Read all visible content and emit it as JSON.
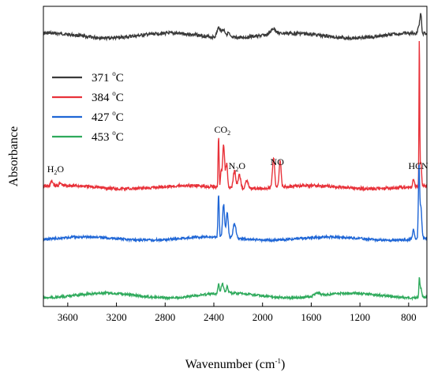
{
  "chart_data": {
    "type": "line",
    "xlabel": "Wavenumber (cm",
    "xlabel_sup": "-1",
    "xlabel_end": ")",
    "ylabel": "Absorbance",
    "xlim": [
      3800,
      650
    ],
    "x_reversed": true,
    "y_ticks_shown": false,
    "x_ticks": [
      "3600",
      "3200",
      "2800",
      "2400",
      "2000",
      "1600",
      "1200",
      "800"
    ],
    "legend_position": "top-left",
    "series": [
      {
        "name": "371 ",
        "name_unit": "C",
        "name_sup": "o",
        "color": "#3a3a3a",
        "offset": 3.0,
        "profile": "top"
      },
      {
        "name": "384 ",
        "name_unit": "C",
        "name_sup": "o",
        "color": "#e8323a",
        "offset": 2.0,
        "profile": "red"
      },
      {
        "name": "427 ",
        "name_unit": "C",
        "name_sup": "o",
        "color": "#1f66d6",
        "offset": 1.0,
        "profile": "blue"
      },
      {
        "name": "453 ",
        "name_unit": "C",
        "name_sup": "o",
        "color": "#2faa5c",
        "offset": 0.0,
        "profile": "bottom"
      }
    ],
    "peak_wavenumbers": {
      "CO2": [
        2360,
        2330
      ],
      "N2O": [
        2210
      ],
      "NO": [
        1905,
        1845
      ],
      "HCN": [
        713
      ]
    },
    "annotations": [
      {
        "main": "H",
        "sub": "2",
        "tail": "O",
        "x": 3700
      },
      {
        "main": "CO",
        "sub": "2",
        "tail": "",
        "x": 2330
      },
      {
        "main": "N",
        "sub": "2",
        "tail": "O",
        "x": 2210
      },
      {
        "main": "NO",
        "sub": "",
        "tail": "",
        "x": 1880
      },
      {
        "main": "HCN",
        "sub": "",
        "tail": "",
        "x": 720
      }
    ]
  }
}
